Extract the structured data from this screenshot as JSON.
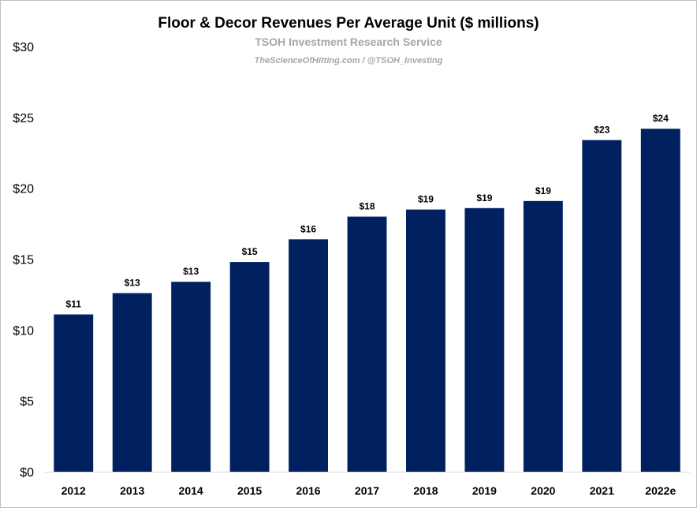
{
  "chart_data": {
    "type": "bar",
    "title": "Floor & Decor Revenues Per Average Unit ($ millions)",
    "subtitle": "TSOH Investment Research Service",
    "source": "TheScienceOfHitting.com / @TSOH_Investing",
    "categories": [
      "2012",
      "2013",
      "2014",
      "2015",
      "2016",
      "2017",
      "2018",
      "2019",
      "2020",
      "2021",
      "2022e"
    ],
    "values": [
      11.1,
      12.6,
      13.4,
      14.8,
      16.4,
      18.0,
      18.5,
      18.6,
      19.1,
      23.4,
      24.2
    ],
    "data_labels": [
      "$11",
      "$13",
      "$13",
      "$15",
      "$16",
      "$18",
      "$19",
      "$19",
      "$19",
      "$23",
      "$24"
    ],
    "y_ticks": [
      0,
      5,
      10,
      15,
      20,
      25,
      30
    ],
    "y_tick_labels": [
      "$0",
      "$5",
      "$10",
      "$15",
      "$20",
      "$25",
      "$30"
    ],
    "ylim": [
      0,
      30
    ],
    "grid": false,
    "legend": "none",
    "bar_color": "#002060"
  }
}
